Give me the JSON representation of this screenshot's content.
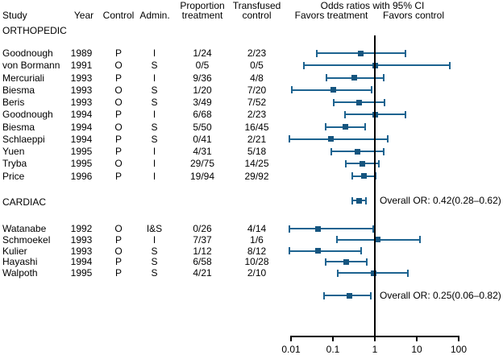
{
  "figure": {
    "columns": {
      "study": "Study",
      "year": "Year",
      "control": "Control",
      "admin": "Admin.",
      "proportion_line1": "Proportion",
      "proportion_line2": "treatment",
      "transfused_line1": "Transfused",
      "transfused_line2": "control",
      "or_header": "Odds ratios with 95% CI",
      "favors_left": "Favors treatment",
      "favors_right": "Favors control"
    },
    "accent_color": "#1d6390",
    "reference_line_color": "#000000"
  },
  "chart_data": {
    "type": "forest",
    "title": "Odds ratios with 95% CI",
    "x_axis": {
      "scale": "log",
      "ticks": [
        "0.01",
        "0.1",
        "1",
        "10",
        "100"
      ],
      "range": [
        0.01,
        100
      ],
      "reference_line": 1,
      "left_region_label": "Favors treatment",
      "right_region_label": "Favors control"
    },
    "sections": [
      {
        "label": "ORTHOPEDIC",
        "studies": [
          {
            "study": "Goodnough",
            "year": "1989",
            "control": "P",
            "admin": "I",
            "proportion_treatment": "1/24",
            "transfused_control": "2/23",
            "or": 0.46,
            "ci_low": 0.04,
            "ci_high": 5.5
          },
          {
            "study": "von Bormann",
            "year": "1991",
            "control": "O",
            "admin": "S",
            "proportion_treatment": "0/5",
            "transfused_control": "0/5",
            "or": 1.0,
            "ci_low": 0.02,
            "ci_high": 62
          },
          {
            "study": "Mercuriali",
            "year": "1993",
            "control": "P",
            "admin": "I",
            "proportion_treatment": "9/36",
            "transfused_control": "4/8",
            "or": 0.33,
            "ci_low": 0.07,
            "ci_high": 1.7
          },
          {
            "study": "Biesma",
            "year": "1993",
            "control": "O",
            "admin": "S",
            "proportion_treatment": "1/20",
            "transfused_control": "7/20",
            "or": 0.1,
            "ci_low": 0.01,
            "ci_high": 0.86
          },
          {
            "study": "Beris",
            "year": "1993",
            "control": "O",
            "admin": "S",
            "proportion_treatment": "3/49",
            "transfused_control": "7/52",
            "or": 0.42,
            "ci_low": 0.1,
            "ci_high": 1.72
          },
          {
            "study": "Goodnough",
            "year": "1994",
            "control": "P",
            "admin": "I",
            "proportion_treatment": "6/68",
            "transfused_control": "2/23",
            "or": 1.02,
            "ci_low": 0.19,
            "ci_high": 5.5
          },
          {
            "study": "Biesma",
            "year": "1994",
            "control": "O",
            "admin": "S",
            "proportion_treatment": "5/50",
            "transfused_control": "16/45",
            "or": 0.2,
            "ci_low": 0.065,
            "ci_high": 0.61
          },
          {
            "study": "Schlaeppi",
            "year": "1994",
            "control": "P",
            "admin": "S",
            "proportion_treatment": "0/41",
            "transfused_control": "2/21",
            "or": 0.09,
            "ci_low": 0.009,
            "ci_high": 2.05
          },
          {
            "study": "Yuen",
            "year": "1995",
            "control": "P",
            "admin": "I",
            "proportion_treatment": "4/31",
            "transfused_control": "5/18",
            "or": 0.39,
            "ci_low": 0.088,
            "ci_high": 1.7
          },
          {
            "study": "Tryba",
            "year": "1995",
            "control": "O",
            "admin": "I",
            "proportion_treatment": "29/75",
            "transfused_control": "14/25",
            "or": 0.5,
            "ci_low": 0.2,
            "ci_high": 1.27
          },
          {
            "study": "Price",
            "year": "1996",
            "control": "P",
            "admin": "I",
            "proportion_treatment": "19/94",
            "transfused_control": "29/92",
            "or": 0.55,
            "ci_low": 0.28,
            "ci_high": 1.08
          }
        ],
        "overall": {
          "label": "Overall OR: 0.42(0.28–0.62)",
          "or": 0.42,
          "ci_low": 0.28,
          "ci_high": 0.62
        }
      },
      {
        "label": "CARDIAC",
        "studies": [
          {
            "study": "Watanabe",
            "year": "1992",
            "control": "O",
            "admin": "I&S",
            "proportion_treatment": "0/26",
            "transfused_control": "4/14",
            "or": 0.044,
            "ci_low": 0.009,
            "ci_high": 0.93
          },
          {
            "study": "Schmoekel",
            "year": "1993",
            "control": "P",
            "admin": "I",
            "proportion_treatment": "7/37",
            "transfused_control": "1/6",
            "or": 1.17,
            "ci_low": 0.12,
            "ci_high": 12
          },
          {
            "study": "Kulier",
            "year": "1993",
            "control": "O",
            "admin": "S",
            "proportion_treatment": "1/12",
            "transfused_control": "8/12",
            "or": 0.045,
            "ci_low": 0.009,
            "ci_high": 0.48
          },
          {
            "study": "Hayashi",
            "year": "1994",
            "control": "P",
            "admin": "S",
            "proportion_treatment": "6/58",
            "transfused_control": "10/28",
            "or": 0.21,
            "ci_low": 0.065,
            "ci_high": 0.66
          },
          {
            "study": "Walpoth",
            "year": "1995",
            "control": "P",
            "admin": "S",
            "proportion_treatment": "4/21",
            "transfused_control": "2/10",
            "or": 0.94,
            "ci_low": 0.13,
            "ci_high": 6.3
          }
        ],
        "overall": {
          "label": "Overall OR: 0.25(0.06–0.82)",
          "or": 0.25,
          "ci_low": 0.06,
          "ci_high": 0.82
        }
      }
    ]
  }
}
